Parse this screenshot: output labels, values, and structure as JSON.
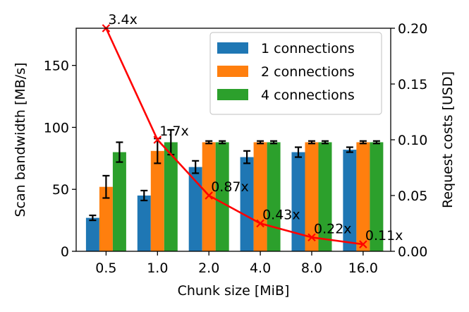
{
  "chart_data": {
    "type": "bar",
    "categories": [
      "0.5",
      "1.0",
      "2.0",
      "4.0",
      "8.0",
      "16.0"
    ],
    "xlabel": "Chunk size [MiB]",
    "ylabel": "Scan bandwidth [MB/s]",
    "y2label": "Request costs [USD]",
    "ylim": [
      0,
      180
    ],
    "y2lim": [
      0,
      0.2
    ],
    "yticks": [
      0,
      50,
      100,
      150
    ],
    "y2ticks": [
      0.0,
      0.05,
      0.1,
      0.15,
      0.2
    ],
    "y2tick_labels": [
      "0.00",
      "0.05",
      "0.10",
      "0.15",
      "0.20"
    ],
    "grid": false,
    "legend_position": "top-right",
    "series": [
      {
        "name": "1 connections",
        "color": "#1f77b4",
        "values": [
          27,
          45,
          68,
          76,
          80,
          82
        ],
        "errors": [
          2,
          4,
          5,
          5,
          4,
          2
        ]
      },
      {
        "name": "2 connections",
        "color": "#ff7f0e",
        "values": [
          52,
          81,
          88,
          88,
          88,
          88
        ],
        "errors": [
          9,
          10,
          1,
          1,
          1,
          1
        ]
      },
      {
        "name": "4 connections",
        "color": "#2ca02c",
        "values": [
          80,
          88,
          88,
          88,
          88,
          88
        ],
        "errors": [
          8,
          10,
          1,
          1,
          1,
          1
        ]
      }
    ],
    "cost_line": {
      "color": "#ff0000",
      "marker": "x",
      "values": [
        0.2,
        0.1,
        0.05,
        0.025,
        0.0125,
        0.00625
      ],
      "labels": [
        "3.4x",
        "1.7x",
        "0.87x",
        "0.43x",
        "0.22x",
        "0.11x"
      ]
    }
  }
}
